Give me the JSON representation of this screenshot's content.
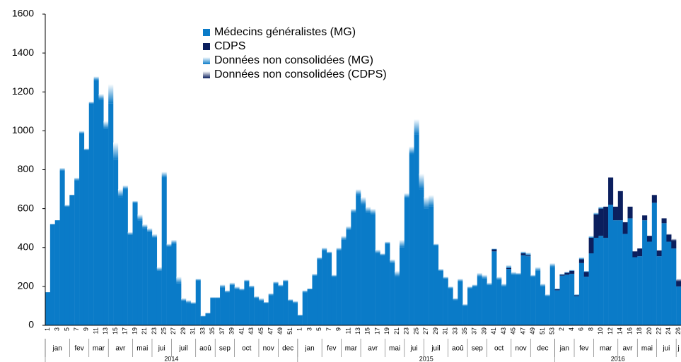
{
  "chart_data": {
    "type": "stacked_bar",
    "categories": [
      "1",
      null,
      "3",
      null,
      "5",
      null,
      "7",
      null,
      "9",
      null,
      "11",
      null,
      "13",
      null,
      "15",
      null,
      "17",
      null,
      "19",
      null,
      "21",
      null,
      "23",
      null,
      "25",
      null,
      "27",
      null,
      "29",
      null,
      "31",
      null,
      "33",
      null,
      "35",
      null,
      "37",
      null,
      "39",
      null,
      "41",
      null,
      "43",
      null,
      "45",
      null,
      "47",
      null,
      "49",
      null,
      "51",
      null,
      "1",
      null,
      "3",
      null,
      "5",
      null,
      "7",
      null,
      "9",
      null,
      "11",
      null,
      "13",
      null,
      "15",
      null,
      "17",
      null,
      "19",
      null,
      "21",
      null,
      "23",
      null,
      "25",
      null,
      "27",
      null,
      "29",
      null,
      "31",
      null,
      "33",
      null,
      "35",
      null,
      "37",
      null,
      "39",
      null,
      "41",
      null,
      "43",
      null,
      "45",
      null,
      "47",
      null,
      "49",
      null,
      "51",
      null,
      "53",
      null,
      "2",
      null,
      "4",
      null,
      "6",
      null,
      "8",
      null,
      "10",
      null,
      "12",
      null,
      "14",
      null,
      "16",
      null,
      "18",
      null,
      "20",
      null,
      "22",
      null,
      "24",
      null,
      "26"
    ],
    "category_groups": [
      "jan",
      "jan",
      "jan",
      "jan",
      "jan",
      "fev",
      "fev",
      "fev",
      "fev",
      "mar",
      "mar",
      "mar",
      "mar",
      "avr",
      "avr",
      "avr",
      "avr",
      "avr",
      "mai",
      "mai",
      "mai",
      "mai",
      "jui",
      "jui",
      "jui",
      "jui",
      "juil",
      "juil",
      "juil",
      "juil",
      "juil",
      "aoû",
      "aoû",
      "aoû",
      "aoû",
      "sep",
      "sep",
      "sep",
      "sep",
      "oct",
      "oct",
      "oct",
      "oct",
      "oct",
      "nov",
      "nov",
      "nov",
      "nov",
      "dec",
      "dec",
      "dec",
      "dec",
      "jan",
      "jan",
      "jan",
      "jan",
      "jan",
      "fev",
      "fev",
      "fev",
      "fev",
      "mar",
      "mar",
      "mar",
      "mar",
      "avr",
      "avr",
      "avr",
      "avr",
      "avr",
      "mai",
      "mai",
      "mai",
      "mai",
      "jui",
      "jui",
      "jui",
      "jui",
      "juil",
      "juil",
      "juil",
      "juil",
      "juil",
      "aoû",
      "aoû",
      "aoû",
      "aoû",
      "sep",
      "sep",
      "sep",
      "sep",
      "oct",
      "oct",
      "oct",
      "oct",
      "oct",
      "nov",
      "nov",
      "nov",
      "nov",
      "dec",
      "dec",
      "dec",
      "dec",
      "dec",
      "jan",
      "jan",
      "jan",
      "jan",
      "fev",
      "fev",
      "fev",
      "fev",
      "mar",
      "mar",
      "mar",
      "mar",
      "mar",
      "avr",
      "avr",
      "avr",
      "avr",
      "mai",
      "mai",
      "mai",
      "mai",
      "jui",
      "jui",
      "jui",
      "jui",
      "j"
    ],
    "category_supergroups": [
      "2014",
      "2014",
      "2014",
      "2014",
      "2014",
      "2014",
      "2014",
      "2014",
      "2014",
      "2014",
      "2014",
      "2014",
      "2014",
      "2014",
      "2014",
      "2014",
      "2014",
      "2014",
      "2014",
      "2014",
      "2014",
      "2014",
      "2014",
      "2014",
      "2014",
      "2014",
      "2014",
      "2014",
      "2014",
      "2014",
      "2014",
      "2014",
      "2014",
      "2014",
      "2014",
      "2014",
      "2014",
      "2014",
      "2014",
      "2014",
      "2014",
      "2014",
      "2014",
      "2014",
      "2014",
      "2014",
      "2014",
      "2014",
      "2014",
      "2014",
      "2014",
      "2014",
      "2015",
      "2015",
      "2015",
      "2015",
      "2015",
      "2015",
      "2015",
      "2015",
      "2015",
      "2015",
      "2015",
      "2015",
      "2015",
      "2015",
      "2015",
      "2015",
      "2015",
      "2015",
      "2015",
      "2015",
      "2015",
      "2015",
      "2015",
      "2015",
      "2015",
      "2015",
      "2015",
      "2015",
      "2015",
      "2015",
      "2015",
      "2015",
      "2015",
      "2015",
      "2015",
      "2015",
      "2015",
      "2015",
      "2015",
      "2015",
      "2015",
      "2015",
      "2015",
      "2015",
      "2015",
      "2015",
      "2015",
      "2015",
      "2015",
      "2015",
      "2015",
      "2015",
      "2015",
      "2016",
      "2016",
      "2016",
      "2016",
      "2016",
      "2016",
      "2016",
      "2016",
      "2016",
      "2016",
      "2016",
      "2016",
      "2016",
      "2016",
      "2016",
      "2016",
      "2016",
      "2016",
      "2016",
      "2016",
      "2016",
      "2016",
      "2016",
      "2016",
      "2016",
      "2016"
    ],
    "series": [
      {
        "name": "Médecins généralistes (MG)",
        "color": "#0a7bc8",
        "gradient": false,
        "values": [
          170,
          520,
          540,
          795,
          610,
          670,
          745,
          985,
          900,
          1140,
          1260,
          1160,
          1010,
          1140,
          850,
          660,
          700,
          465,
          630,
          540,
          500,
          480,
          450,
          280,
          760,
          405,
          420,
          215,
          125,
          115,
          110,
          230,
          45,
          60,
          140,
          140,
          195,
          170,
          205,
          185,
          180,
          225,
          195,
          140,
          125,
          115,
          155,
          215,
          200,
          225,
          125,
          115,
          50,
          170,
          185,
          255,
          340,
          385,
          370,
          250,
          385,
          440,
          490,
          580,
          670,
          620,
          580,
          570,
          370,
          360,
          420,
          320,
          250,
          400,
          655,
          880,
          980,
          700,
          600,
          610,
          410,
          280,
          240,
          190,
          130,
          225,
          100,
          190,
          200,
          250,
          240,
          205,
          380,
          235,
          200,
          290,
          260,
          260,
          360,
          355,
          250,
          280,
          200,
          150,
          300,
          180,
          255,
          260,
          265,
          150,
          320,
          250,
          370,
          450,
          460,
          450,
          620,
          540,
          540,
          470,
          550,
          350,
          355,
          540,
          430,
          630,
          355,
          525,
          430,
          395,
          200
        ]
      },
      {
        "name": "CDPS",
        "color": "#0b1f5e",
        "gradient": false,
        "values": [
          0,
          0,
          0,
          0,
          0,
          0,
          0,
          0,
          0,
          0,
          0,
          0,
          0,
          0,
          0,
          0,
          0,
          0,
          0,
          0,
          0,
          0,
          0,
          0,
          0,
          0,
          0,
          0,
          0,
          0,
          0,
          0,
          0,
          0,
          0,
          0,
          0,
          0,
          0,
          0,
          0,
          0,
          0,
          0,
          0,
          0,
          0,
          0,
          0,
          0,
          0,
          0,
          0,
          0,
          0,
          0,
          0,
          0,
          0,
          0,
          0,
          0,
          0,
          0,
          0,
          0,
          0,
          0,
          0,
          0,
          0,
          0,
          0,
          0,
          0,
          0,
          0,
          0,
          0,
          0,
          0,
          0,
          0,
          0,
          0,
          0,
          0,
          0,
          0,
          0,
          0,
          0,
          10,
          0,
          0,
          5,
          0,
          0,
          10,
          5,
          0,
          0,
          0,
          0,
          0,
          5,
          5,
          10,
          15,
          5,
          20,
          25,
          80,
          120,
          140,
          160,
          140,
          70,
          150,
          60,
          60,
          30,
          40,
          25,
          30,
          40,
          30,
          25,
          35,
          40,
          25
        ]
      },
      {
        "name": "Données non consolidées (MG)",
        "color": "#0a7bc8",
        "gradient": true,
        "values": [
          0,
          0,
          0,
          15,
          10,
          0,
          15,
          15,
          10,
          10,
          20,
          30,
          40,
          100,
          90,
          40,
          20,
          15,
          10,
          30,
          20,
          20,
          20,
          20,
          30,
          15,
          20,
          35,
          15,
          15,
          10,
          10,
          5,
          5,
          5,
          5,
          15,
          10,
          15,
          15,
          10,
          10,
          10,
          10,
          15,
          5,
          10,
          10,
          10,
          10,
          10,
          10,
          5,
          10,
          5,
          10,
          10,
          15,
          10,
          10,
          15,
          20,
          20,
          20,
          30,
          40,
          30,
          30,
          20,
          10,
          10,
          20,
          30,
          40,
          25,
          40,
          80,
          80,
          60,
          60,
          10,
          10,
          10,
          10,
          10,
          15,
          10,
          10,
          10,
          20,
          20,
          15,
          5,
          15,
          15,
          15,
          15,
          10,
          10,
          15,
          10,
          20,
          15,
          10,
          20,
          5,
          5,
          5,
          5,
          5,
          10,
          5,
          10,
          10,
          10,
          0,
          0,
          0,
          0,
          0,
          0,
          0,
          0,
          0,
          0,
          0,
          0,
          0,
          0,
          0,
          0
        ]
      },
      {
        "name": "Données non consolidées (CDPS)",
        "color": "#0b1f5e",
        "gradient": true,
        "values": [
          0,
          0,
          0,
          0,
          0,
          0,
          0,
          0,
          0,
          0,
          0,
          0,
          0,
          0,
          0,
          0,
          0,
          0,
          0,
          0,
          0,
          0,
          0,
          0,
          0,
          0,
          0,
          0,
          0,
          0,
          0,
          0,
          0,
          0,
          0,
          0,
          0,
          0,
          0,
          0,
          0,
          0,
          0,
          0,
          0,
          0,
          0,
          0,
          0,
          0,
          0,
          0,
          0,
          0,
          0,
          0,
          0,
          0,
          0,
          0,
          0,
          0,
          0,
          0,
          0,
          0,
          0,
          0,
          0,
          0,
          0,
          0,
          0,
          0,
          0,
          0,
          0,
          0,
          0,
          0,
          0,
          0,
          0,
          0,
          0,
          0,
          0,
          0,
          0,
          0,
          0,
          0,
          0,
          0,
          0,
          0,
          0,
          0,
          0,
          0,
          0,
          0,
          0,
          0,
          0,
          0,
          0,
          0,
          0,
          0,
          0,
          0,
          0,
          0,
          0,
          0,
          0,
          0,
          0,
          0,
          0,
          0,
          0,
          0,
          0,
          0,
          0,
          0,
          5,
          10,
          15
        ]
      }
    ],
    "ylim": [
      0,
      1600
    ],
    "yticks": [
      0,
      200,
      400,
      600,
      800,
      1000,
      1200,
      1400,
      1600
    ],
    "grid": false
  }
}
